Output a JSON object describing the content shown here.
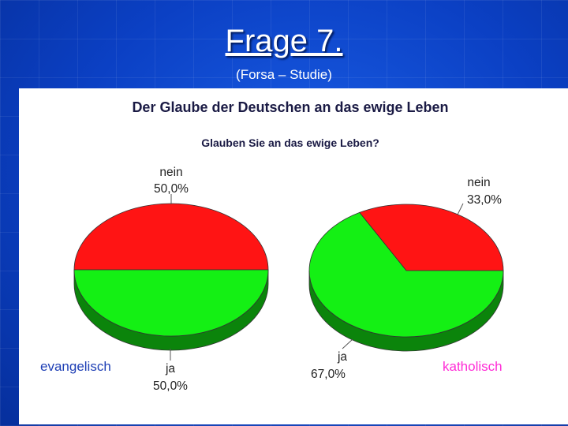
{
  "slide": {
    "title": "Frage 7.",
    "subtitle": "(Forsa – Studie)"
  },
  "chart_data": {
    "type": "pie",
    "title": "Der Glaube der Deutschen an das ewige Leben",
    "subtitle": "Glauben Sie an das ewige Leben?",
    "pies": [
      {
        "group": "evangelisch",
        "group_color": "#1e3fb5",
        "slices": [
          {
            "label": "nein",
            "value": 50.0,
            "value_text": "50,0%",
            "color": "#ff1414"
          },
          {
            "label": "ja",
            "value": 50.0,
            "value_text": "50,0%",
            "color": "#14f014"
          }
        ]
      },
      {
        "group": "katholisch",
        "group_color": "#ff2bd6",
        "slices": [
          {
            "label": "nein",
            "value": 33.0,
            "value_text": "33,0%",
            "color": "#ff1414"
          },
          {
            "label": "ja",
            "value": 67.0,
            "value_text": "67,0%",
            "color": "#14f014"
          }
        ]
      }
    ]
  }
}
